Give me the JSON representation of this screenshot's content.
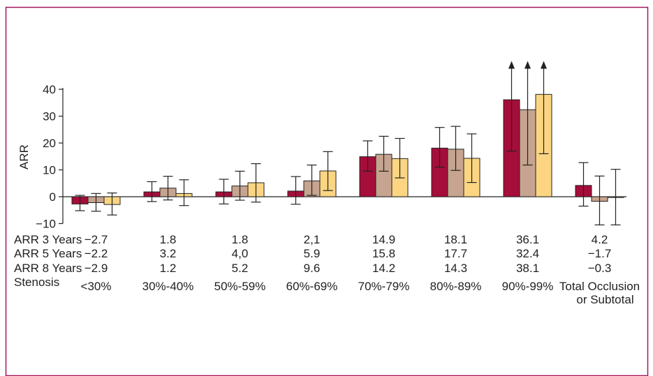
{
  "colors": {
    "frame": "#a2165a",
    "series": [
      "#a50d3a",
      "#c6a48f",
      "#fbd582"
    ],
    "axis": "#222222"
  },
  "chart_data": {
    "type": "bar",
    "title": "",
    "ylabel": "ARR",
    "xlabel": "",
    "ylim": [
      -10,
      40
    ],
    "yticks": [
      "40",
      "30",
      "20",
      "10",
      "0",
      "−10"
    ],
    "grid": false,
    "legend": "none",
    "categories": [
      "<30%",
      "30%-40%",
      "50%-59%",
      "60%-69%",
      "70%-79%",
      "80%-89%",
      "90%-99%",
      "Total Occlusion or Subtotal"
    ],
    "series": [
      {
        "name": "ARR 3 Years",
        "values": [
          -2.7,
          1.8,
          1.8,
          2.1,
          14.9,
          18.1,
          36.1,
          4.2
        ],
        "labels": [
          "−2.7",
          "1.8",
          "1.8",
          "2,1",
          "14.9",
          "18.1",
          "36.1",
          "4.2"
        ],
        "err_low": [
          -5.2,
          -1.8,
          -2.7,
          -2.8,
          9.5,
          11.0,
          17.0,
          -3.5
        ],
        "err_high": [
          0.5,
          5.6,
          6.5,
          7.5,
          20.8,
          25.8,
          43.0,
          12.7
        ],
        "arrow_up": [
          false,
          false,
          false,
          false,
          false,
          false,
          true,
          false
        ]
      },
      {
        "name": "ARR 5 Years",
        "values": [
          -2.2,
          3.2,
          4.0,
          5.9,
          15.8,
          17.7,
          32.4,
          -1.7
        ],
        "labels": [
          "−2.2",
          "3.2",
          "4,0",
          "5.9",
          "15.8",
          "17.7",
          "32.4",
          "−1.7"
        ],
        "err_low": [
          -5.4,
          -1.2,
          -1.3,
          0.5,
          9.5,
          9.8,
          11.8,
          -10.5
        ],
        "err_high": [
          1.2,
          7.6,
          9.5,
          11.8,
          22.5,
          26.2,
          43.0,
          7.7
        ],
        "arrow_up": [
          false,
          false,
          false,
          false,
          false,
          false,
          true,
          false
        ]
      },
      {
        "name": "ARR 8 Years",
        "values": [
          -2.9,
          1.2,
          5.2,
          9.6,
          14.2,
          14.3,
          38.1,
          -0.3
        ],
        "labels": [
          "−2.9",
          "1.2",
          "5.2",
          "9.6",
          "14.2",
          "14.3",
          "38.1",
          "−0.3"
        ],
        "err_low": [
          -6.8,
          -3.3,
          -2.0,
          2.3,
          7.0,
          5.3,
          16.0,
          -10.5
        ],
        "err_high": [
          1.4,
          6.3,
          12.3,
          16.8,
          21.7,
          23.4,
          43.0,
          10.2
        ],
        "arrow_up": [
          false,
          false,
          false,
          false,
          false,
          false,
          true,
          false
        ]
      }
    ],
    "stenosis_row": {
      "name": "Stenosis",
      "labels": [
        [
          "<30%"
        ],
        [
          "30%-40%"
        ],
        [
          "50%-59%"
        ],
        [
          "60%-69%"
        ],
        [
          "70%-79%"
        ],
        [
          "80%-89%"
        ],
        [
          "90%-99%"
        ],
        [
          "Total Occlusion",
          "or Subtotal"
        ]
      ]
    }
  }
}
